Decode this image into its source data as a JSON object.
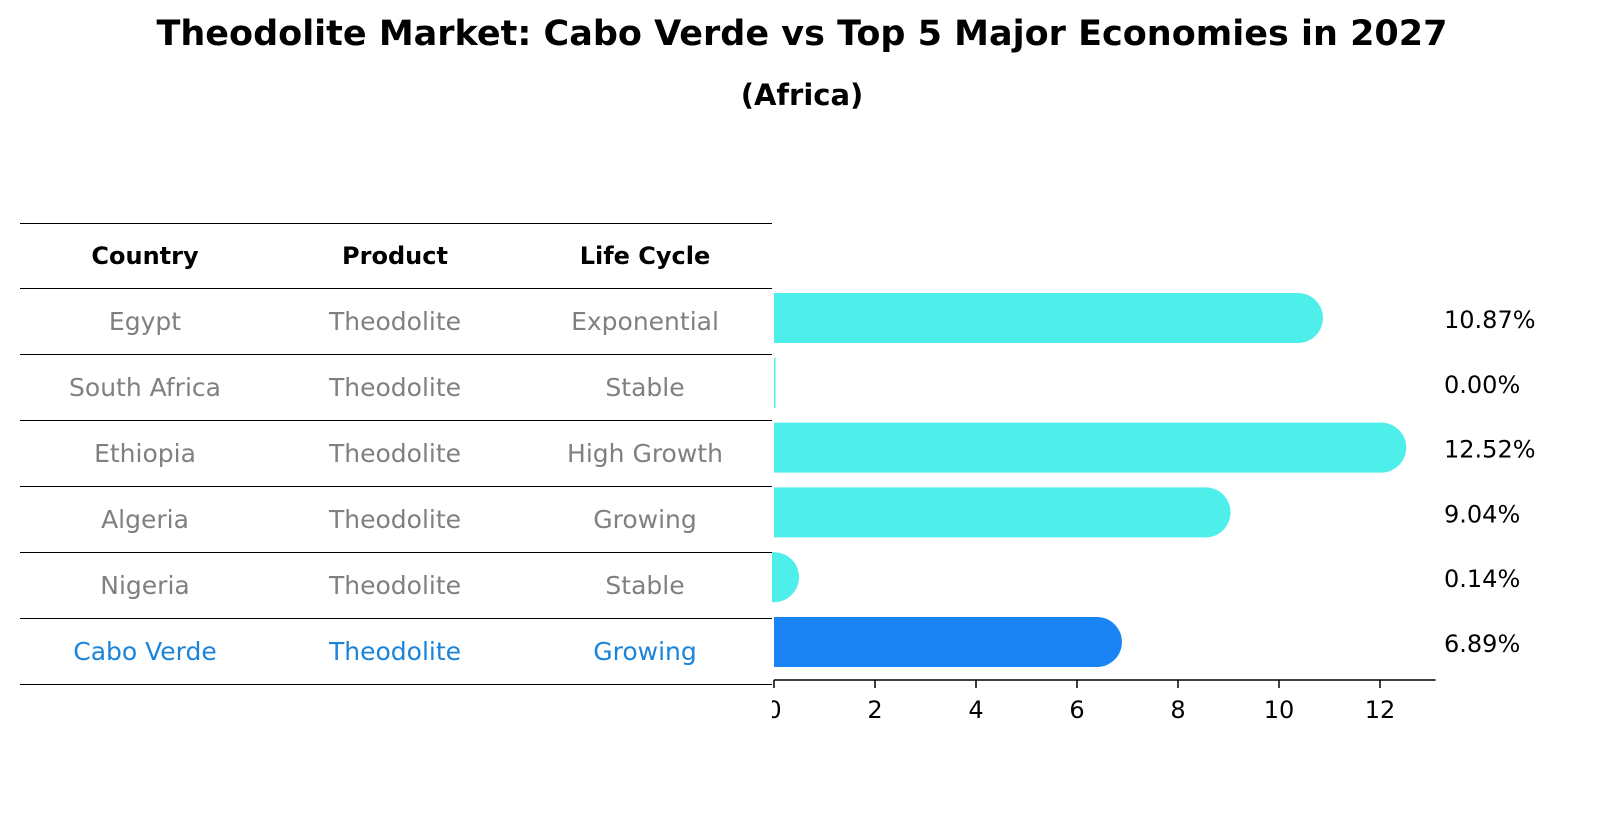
{
  "title": "Theodolite Market: Cabo Verde vs Top 5 Major Economies in 2027",
  "subtitle": "(Africa)",
  "table": {
    "headers": [
      "Country",
      "Product",
      "Life Cycle"
    ],
    "rows": [
      {
        "country": "Egypt",
        "product": "Theodolite",
        "life_cycle": "Exponential"
      },
      {
        "country": "South Africa",
        "product": "Theodolite",
        "life_cycle": "Stable"
      },
      {
        "country": "Ethiopia",
        "product": "Theodolite",
        "life_cycle": "High Growth"
      },
      {
        "country": "Algeria",
        "product": "Theodolite",
        "life_cycle": "Growing"
      },
      {
        "country": "Nigeria",
        "product": "Theodolite",
        "life_cycle": "Stable"
      },
      {
        "country": "Cabo Verde",
        "product": "Theodolite",
        "life_cycle": "Growing"
      }
    ]
  },
  "chart_data": {
    "type": "bar",
    "orientation": "horizontal",
    "categories": [
      "Egypt",
      "South Africa",
      "Ethiopia",
      "Algeria",
      "Nigeria",
      "Cabo Verde"
    ],
    "values": [
      10.87,
      0.0,
      12.52,
      9.04,
      0.14,
      6.89
    ],
    "value_labels": [
      "10.87%",
      "0.00%",
      "12.52%",
      "9.04%",
      "0.14%",
      "6.89%"
    ],
    "xlim": [
      0,
      13.1
    ],
    "xticks": [
      "0",
      "2",
      "4",
      "6",
      "8",
      "10",
      "12"
    ],
    "highlight_index": 5,
    "grid": false,
    "colors": {
      "default": "#4eeeea",
      "highlight": "#1a84f5",
      "highlight_text": "#1a84da",
      "muted_text": "#808080"
    }
  }
}
